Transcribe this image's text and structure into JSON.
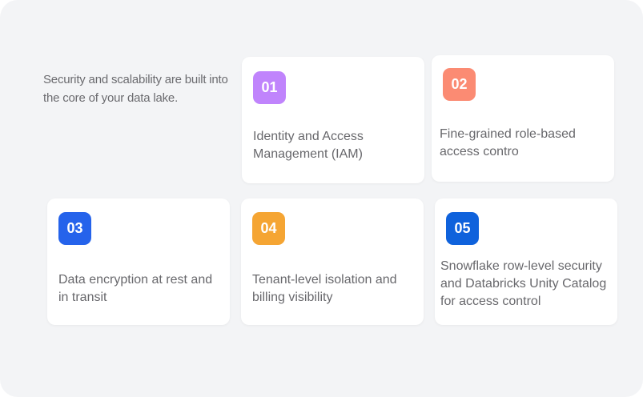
{
  "intro": "Security and scalability are built into the core of your data lake.",
  "cards": [
    {
      "number": "01",
      "label": "Identity and Access Management (IAM)",
      "color": "#c084fc"
    },
    {
      "number": "02",
      "label": "Fine-grained role-based access contro",
      "color": "#fb8b73"
    },
    {
      "number": "03",
      "label": "Data encryption at rest and in transit",
      "color": "#2563eb"
    },
    {
      "number": "04",
      "label": "Tenant-level isolation and billing visibility",
      "color": "#f5a533"
    },
    {
      "number": "05",
      "label": "Snowflake row-level security and Databricks Unity Catalog for access control",
      "color": "#0f62dc"
    }
  ]
}
